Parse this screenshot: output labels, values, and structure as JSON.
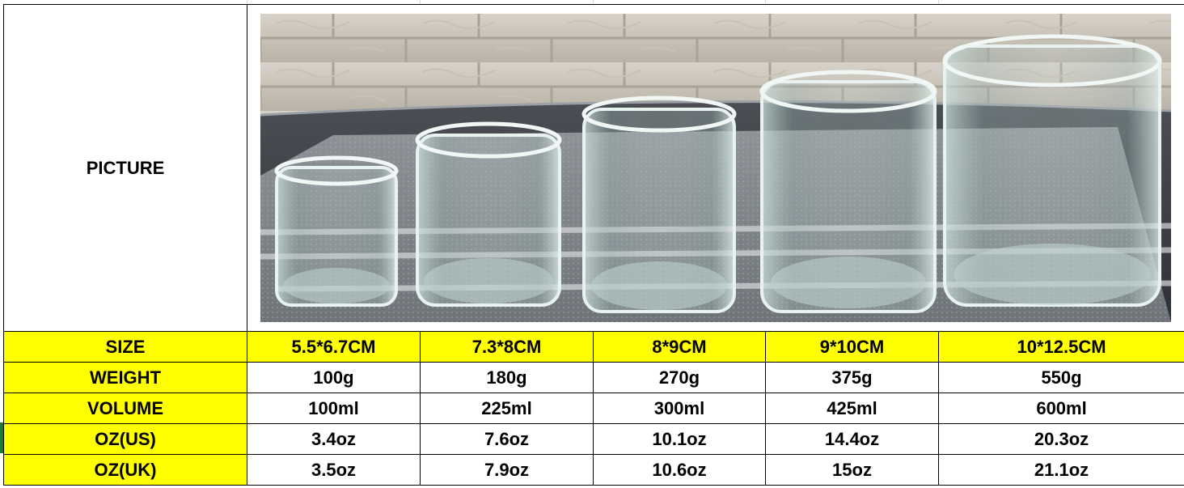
{
  "picture_label": "PICTURE",
  "rows": [
    {
      "label": "SIZE",
      "values": [
        "5.5*6.7CM",
        "7.3*8CM",
        "8*9CM",
        "9*10CM",
        "10*12.5CM"
      ]
    },
    {
      "label": "WEIGHT",
      "values": [
        "100g",
        "180g",
        "270g",
        "375g",
        "550g"
      ]
    },
    {
      "label": "VOLUME",
      "values": [
        "100ml",
        "225ml",
        "300ml",
        "425ml",
        "600ml"
      ]
    },
    {
      "label": "OZ(US)",
      "values": [
        "3.4oz",
        "7.6oz",
        "10.1oz",
        "14.4oz",
        "20.3oz"
      ]
    },
    {
      "label": "OZ(UK)",
      "values": [
        "3.5oz",
        "7.9oz",
        "10.6oz",
        "15oz",
        "21.1oz"
      ]
    }
  ],
  "colors": {
    "label_fill": "#ffff00",
    "border": "#000000"
  },
  "photo": {
    "subject": "five-clear-glass-candle-jars"
  }
}
